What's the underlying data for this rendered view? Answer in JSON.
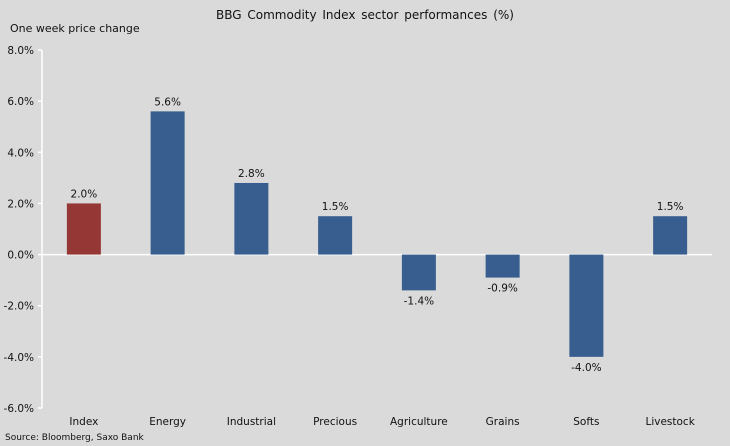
{
  "chart_data": {
    "type": "bar",
    "title": "BBG  Commodity  Index sector performances (%)",
    "ylabel": "One week price change",
    "xlabel": "",
    "source": "Source: Bloomberg, Saxo Bank",
    "categories": [
      "Index",
      "Energy",
      "Industrial",
      "Precious",
      "Agriculture",
      "Grains",
      "Softs",
      "Livestock"
    ],
    "values": [
      2.0,
      5.6,
      2.8,
      1.5,
      -1.4,
      -0.9,
      -4.0,
      1.5
    ],
    "data_labels": [
      "2.0%",
      "5.6%",
      "2.8%",
      "1.5%",
      "-1.4%",
      "-0.9%",
      "-4.0%",
      "1.5%"
    ],
    "ylim": [
      -6.0,
      8.0
    ],
    "yticks": [
      8.0,
      6.0,
      4.0,
      2.0,
      0.0,
      -2.0,
      -4.0,
      -6.0
    ],
    "ytick_labels": [
      "8.0%",
      "6.0%",
      "4.0%",
      "2.0%",
      "0.0%",
      "-2.0%",
      "-4.0%",
      "-6.0%"
    ],
    "grid": false,
    "legend": "none",
    "colors": {
      "default": "#375e8f",
      "highlight": "#953735",
      "highlight_category": "Index",
      "background": "#dadada",
      "axis": "#ffffff"
    }
  }
}
